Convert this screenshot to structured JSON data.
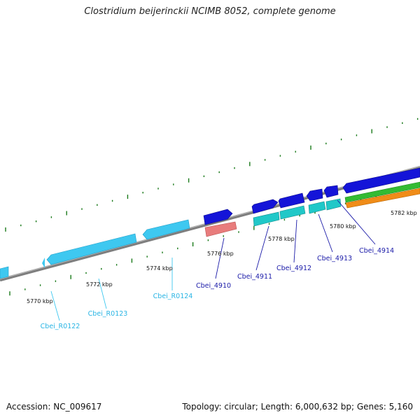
{
  "title": "Clostridium beijerinckii NCIMB 8052, complete genome",
  "footer": {
    "accession": "Accession: NC_009617",
    "topology": "Topology: circular; Length: 6,000,632 bp; Genes: 5,160"
  },
  "colors": {
    "backbone": "#8a8a8a",
    "tick": "#1a7a1a",
    "rna_gene": "#3ec8f0",
    "rna_label": "#28b4e4",
    "cds_forward": "#1414d8",
    "cds_label": "#1a1aa8",
    "feature_red": "#e87c7c",
    "feature_cyan": "#20c8c8",
    "feature_green": "#33bb33",
    "feature_orange": "#f08c18"
  },
  "kbp_labels": [
    "5770 kbp",
    "5772 kbp",
    "5774 kbp",
    "5776 kbp",
    "5778 kbp",
    "5780 kbp",
    "5782 kbp"
  ],
  "gene_labels": [
    {
      "name": "Cbei_R0122",
      "type": "rna"
    },
    {
      "name": "Cbei_R0123",
      "type": "rna"
    },
    {
      "name": "Cbei_R0124",
      "type": "rna"
    },
    {
      "name": "Cbei_4910",
      "type": "cds"
    },
    {
      "name": "Cbei_4911",
      "type": "cds"
    },
    {
      "name": "Cbei_4912",
      "type": "cds"
    },
    {
      "name": "Cbei_4913",
      "type": "cds"
    },
    {
      "name": "Cbei_4914",
      "type": "cds"
    }
  ]
}
